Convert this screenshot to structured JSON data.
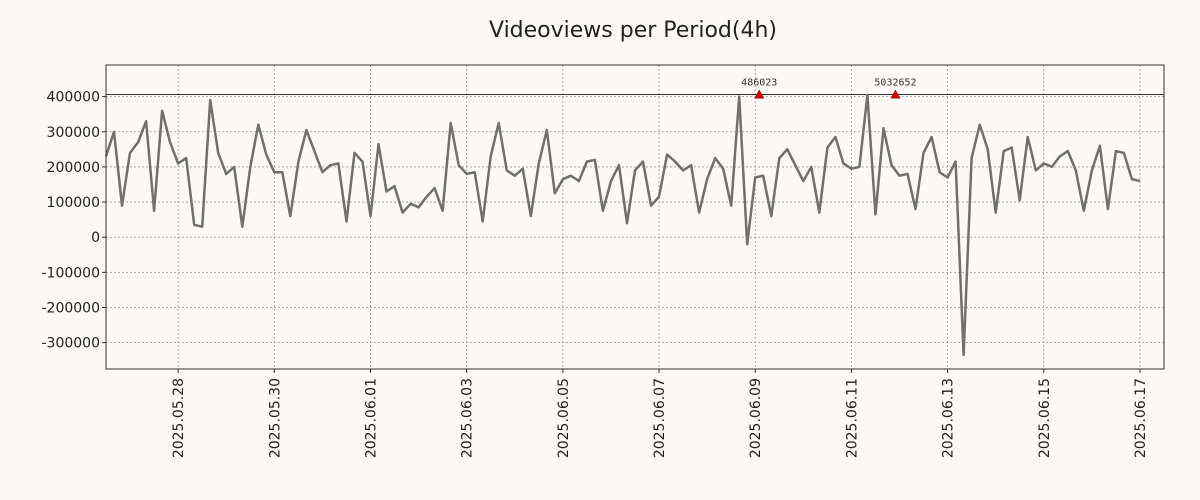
{
  "chart_data": {
    "type": "line",
    "title": "Videoviews per Period(4h)",
    "xlabel": "",
    "ylabel": "",
    "x_ticks": [
      "2025.05.28",
      "2025.05.30",
      "2025.06.01",
      "2025.06.03",
      "2025.06.05",
      "2025.06.07",
      "2025.06.09",
      "2025.06.11",
      "2025.06.13",
      "2025.06.15",
      "2025.06.17"
    ],
    "y_ticks": [
      400000,
      300000,
      200000,
      100000,
      0,
      -100000,
      -200000,
      -300000
    ],
    "ylim": [
      -375000,
      490000
    ],
    "xlim": [
      "2025.05.26 12:00",
      "2025.06.17 12:00"
    ],
    "grid": true,
    "reference_line": 406000,
    "series": [
      {
        "color": "#707070",
        "x_start": "2025.05.26 12:00",
        "x_step_hours": 4,
        "values": [
          230000,
          300000,
          90000,
          240000,
          270000,
          330000,
          75000,
          360000,
          270000,
          210000,
          225000,
          35000,
          30000,
          390000,
          240000,
          180000,
          200000,
          30000,
          200000,
          320000,
          235000,
          185000,
          185000,
          60000,
          215000,
          305000,
          245000,
          185000,
          205000,
          210000,
          45000,
          240000,
          215000,
          60000,
          265000,
          130000,
          145000,
          70000,
          95000,
          85000,
          115000,
          140000,
          75000,
          325000,
          205000,
          180000,
          185000,
          45000,
          230000,
          325000,
          190000,
          175000,
          195000,
          60000,
          210000,
          305000,
          125000,
          165000,
          175000,
          160000,
          215000,
          220000,
          75000,
          160000,
          205000,
          40000,
          190000,
          215000,
          90000,
          115000,
          235000,
          215000,
          190000,
          205000,
          70000,
          165000,
          225000,
          195000,
          90000,
          400000,
          -20000,
          170000,
          175000,
          60000,
          225000,
          250000,
          205000,
          160000,
          200000,
          70000,
          255000,
          285000,
          210000,
          195000,
          200000,
          405000,
          65000,
          310000,
          205000,
          175000,
          180000,
          80000,
          240000,
          285000,
          185000,
          170000,
          215000,
          -335000,
          225000,
          320000,
          250000,
          70000,
          245000,
          255000,
          105000,
          285000,
          190000,
          210000,
          200000,
          230000,
          245000,
          190000,
          75000,
          190000,
          260000,
          80000,
          245000,
          240000,
          165000,
          160000
        ]
      }
    ],
    "annotations": [
      {
        "label": "486023",
        "x": "2025.06.09 02:00",
        "y": 406000,
        "color": "#cc0000"
      },
      {
        "label": "5032652",
        "x": "2025.06.11 22:00",
        "y": 406000,
        "color": "#cc0000"
      }
    ]
  }
}
